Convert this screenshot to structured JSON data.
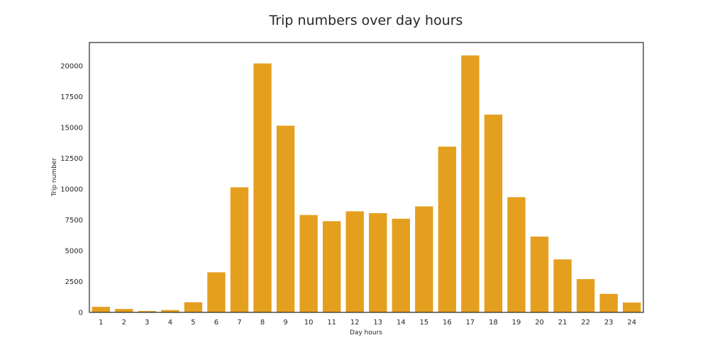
{
  "chart_data": {
    "type": "bar",
    "title": "Trip numbers over day hours",
    "xlabel": "Day hours",
    "ylabel": "Trip number",
    "categories": [
      "1",
      "2",
      "3",
      "4",
      "5",
      "6",
      "7",
      "8",
      "9",
      "10",
      "11",
      "12",
      "13",
      "14",
      "15",
      "16",
      "17",
      "18",
      "19",
      "20",
      "21",
      "22",
      "23",
      "24"
    ],
    "values": [
      450,
      280,
      110,
      190,
      820,
      3250,
      10150,
      20200,
      15150,
      7900,
      7400,
      8200,
      8050,
      7600,
      8600,
      13450,
      20850,
      16050,
      9350,
      6150,
      4300,
      2700,
      1500,
      800
    ],
    "ylim": [
      0,
      21900
    ],
    "yticks": [
      "0",
      "2500",
      "5000",
      "7500",
      "10000",
      "12500",
      "15000",
      "17500",
      "20000"
    ],
    "ytick_values": [
      0,
      2500,
      5000,
      7500,
      10000,
      12500,
      15000,
      17500,
      20000
    ],
    "bar_color": "#E59F1F",
    "grid": false
  }
}
